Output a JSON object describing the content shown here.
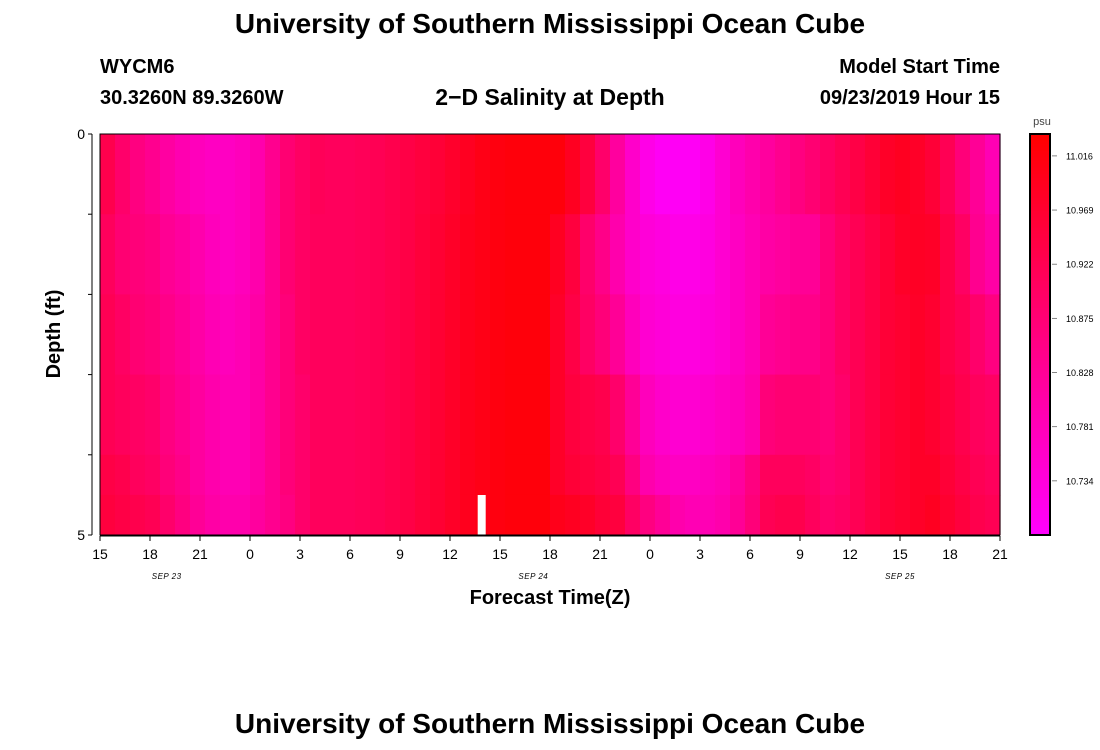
{
  "page": {
    "title_top": "University of Southern Mississippi Ocean Cube",
    "title_bottom": "University of Southern Mississippi Ocean Cube",
    "station": "WYCM6",
    "coords": "30.3260N 89.3260W",
    "plot_title": "2−D Salinity at Depth",
    "model_label": "Model Start Time",
    "model_time": "09/23/2019 Hour 15"
  },
  "chart_data": {
    "type": "heatmap",
    "title": "2−D Salinity at Depth",
    "xlabel": "Forecast Time(Z)",
    "ylabel": "Depth (ft)",
    "ylim": [
      0,
      5
    ],
    "y_tick_labels": [
      "0",
      "5"
    ],
    "x_ticks": [
      "15",
      "18",
      "21",
      "0",
      "3",
      "6",
      "9",
      "12",
      "15",
      "18",
      "21",
      "0",
      "3",
      "6",
      "9",
      "12",
      "15",
      "18",
      "21"
    ],
    "x_hours_start": 15,
    "x_hours_end": 69,
    "date_labels": [
      {
        "hour": 19,
        "label": "SEP 23"
      },
      {
        "hour": 41,
        "label": "SEP 24"
      },
      {
        "hour": 63,
        "label": "SEP 25"
      }
    ],
    "current_time_hour": 37.9,
    "colorbar": {
      "unit": "psu",
      "min": 10.687,
      "max": 11.035,
      "ticks": [
        11.016,
        10.969,
        10.922,
        10.875,
        10.828,
        10.781,
        10.734
      ]
    },
    "depth_layers": [
      0,
      1,
      2,
      3,
      4,
      4.5
    ],
    "values": [
      [
        10.93,
        10.89,
        10.86,
        10.84,
        10.815,
        10.795,
        10.78,
        10.77,
        10.77,
        10.78,
        10.8,
        10.84,
        10.88,
        10.9,
        10.915,
        10.91,
        10.91,
        10.915,
        10.92,
        10.93,
        10.94,
        10.95,
        10.96,
        10.975,
        10.99,
        11.005,
        11.015,
        11.02,
        11.02,
        11.02,
        11.02,
        10.99,
        10.95,
        10.89,
        10.82,
        10.76,
        10.72,
        10.7,
        10.7,
        10.7,
        10.72,
        10.75,
        10.78,
        10.8,
        10.82,
        10.84,
        10.86,
        10.88,
        10.9,
        10.92,
        10.94,
        10.96,
        10.98,
        10.99,
        10.98,
        10.96,
        10.92,
        10.87,
        10.83,
        10.79
      ],
      [
        10.91,
        10.88,
        10.87,
        10.86,
        10.835,
        10.82,
        10.8,
        10.78,
        10.77,
        10.78,
        10.8,
        10.84,
        10.88,
        10.9,
        10.91,
        10.91,
        10.91,
        10.915,
        10.92,
        10.93,
        10.94,
        10.955,
        10.965,
        10.98,
        10.995,
        11.005,
        11.015,
        11.02,
        11.02,
        11.02,
        10.99,
        10.95,
        10.89,
        10.85,
        10.8,
        10.76,
        10.74,
        10.73,
        10.72,
        10.72,
        10.73,
        10.75,
        10.77,
        10.79,
        10.81,
        10.82,
        10.83,
        10.83,
        10.87,
        10.9,
        10.92,
        10.94,
        10.96,
        10.98,
        10.985,
        10.98,
        10.94,
        10.9,
        10.84,
        10.81
      ],
      [
        10.92,
        10.9,
        10.88,
        10.87,
        10.85,
        10.83,
        10.81,
        10.79,
        10.78,
        10.79,
        10.81,
        10.84,
        10.87,
        10.9,
        10.91,
        10.91,
        10.91,
        10.915,
        10.92,
        10.93,
        10.94,
        10.955,
        10.965,
        10.98,
        10.995,
        11.005,
        11.015,
        11.02,
        11.02,
        11.02,
        10.98,
        10.94,
        10.9,
        10.87,
        10.83,
        10.78,
        10.75,
        10.74,
        10.73,
        10.73,
        10.74,
        10.75,
        10.77,
        10.79,
        10.83,
        10.84,
        10.85,
        10.85,
        10.87,
        10.9,
        10.92,
        10.94,
        10.96,
        10.97,
        10.98,
        10.97,
        10.94,
        10.92,
        10.89,
        10.86
      ],
      [
        10.92,
        10.91,
        10.9,
        10.89,
        10.86,
        10.84,
        10.82,
        10.8,
        10.79,
        10.79,
        10.81,
        10.84,
        10.87,
        10.89,
        10.91,
        10.91,
        10.91,
        10.915,
        10.92,
        10.93,
        10.94,
        10.955,
        10.965,
        10.98,
        10.995,
        11.005,
        11.015,
        11.02,
        11.02,
        11.02,
        10.98,
        10.95,
        10.94,
        10.93,
        10.89,
        10.83,
        10.78,
        10.76,
        10.75,
        10.75,
        10.76,
        10.77,
        10.78,
        10.8,
        10.87,
        10.88,
        10.88,
        10.88,
        10.87,
        10.89,
        10.92,
        10.94,
        10.96,
        10.97,
        10.98,
        10.97,
        10.95,
        10.93,
        10.91,
        10.9
      ],
      [
        10.94,
        10.93,
        10.91,
        10.9,
        10.87,
        10.85,
        10.82,
        10.8,
        10.79,
        10.79,
        10.81,
        10.84,
        10.87,
        10.89,
        10.91,
        10.91,
        10.91,
        10.915,
        10.92,
        10.93,
        10.94,
        10.955,
        10.965,
        10.98,
        10.995,
        11.005,
        11.015,
        11.02,
        11.02,
        11.02,
        10.98,
        10.96,
        10.95,
        10.94,
        10.92,
        10.86,
        10.8,
        10.78,
        10.77,
        10.77,
        10.78,
        10.79,
        10.82,
        10.86,
        10.91,
        10.91,
        10.91,
        10.9,
        10.88,
        10.89,
        10.92,
        10.94,
        10.96,
        10.97,
        10.98,
        10.98,
        10.96,
        10.94,
        10.92,
        10.91
      ],
      [
        10.95,
        10.94,
        10.93,
        10.92,
        10.89,
        10.86,
        10.83,
        10.81,
        10.8,
        10.8,
        10.82,
        10.84,
        10.86,
        10.89,
        10.91,
        10.91,
        10.91,
        10.915,
        10.92,
        10.93,
        10.94,
        10.955,
        10.965,
        10.98,
        10.995,
        11.005,
        11.015,
        11.02,
        11.02,
        11.02,
        11.0,
        10.99,
        10.98,
        10.96,
        10.95,
        10.9,
        10.86,
        10.83,
        10.8,
        10.79,
        10.79,
        10.8,
        10.83,
        10.87,
        10.92,
        10.93,
        10.93,
        10.91,
        10.89,
        10.9,
        10.92,
        10.94,
        10.96,
        10.97,
        10.98,
        10.99,
        10.97,
        10.95,
        10.93,
        10.92
      ]
    ]
  }
}
